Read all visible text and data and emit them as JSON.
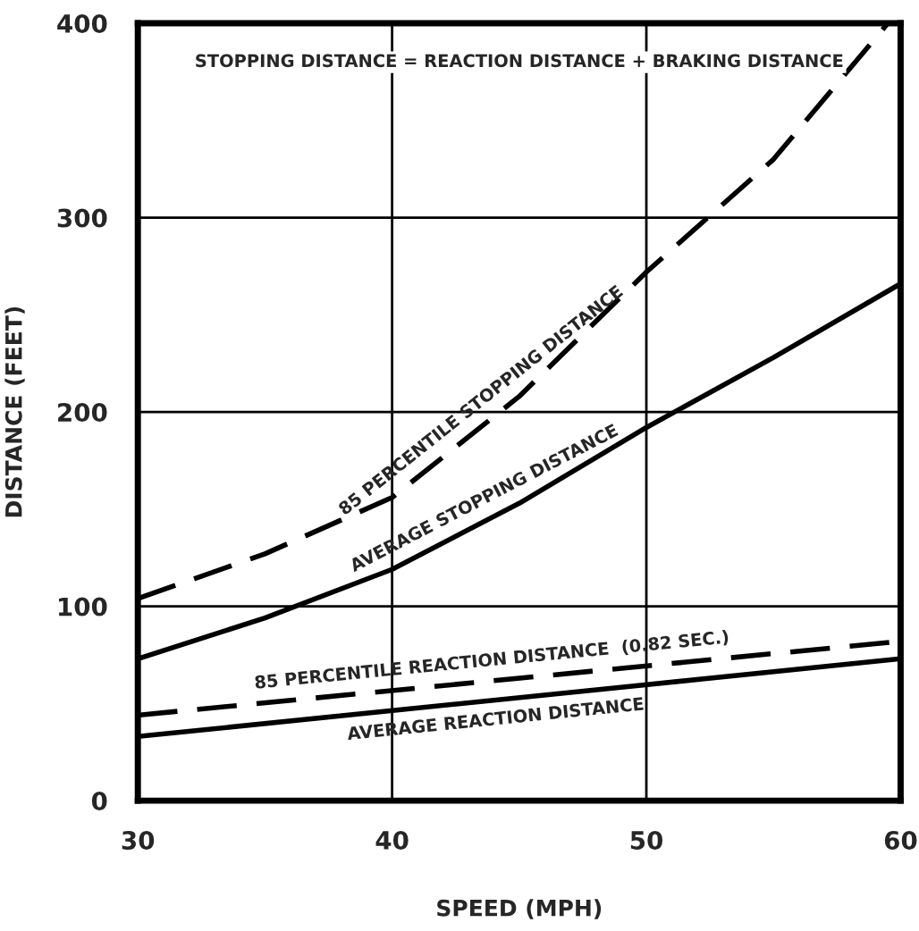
{
  "chart_data": {
    "type": "line",
    "xlabel": "SPEED (MPH)",
    "ylabel": "DISTANCE (FEET)",
    "annotations": [
      "STOPPING DISTANCE = REACTION DISTANCE + BRAKING DISTANCE"
    ],
    "xlim": [
      30,
      60
    ],
    "xticks": [
      30,
      40,
      50,
      60
    ],
    "ylim": [
      0,
      400
    ],
    "yticks": [
      0,
      100,
      200,
      300,
      400
    ],
    "grid": true,
    "legend": false,
    "series": [
      {
        "name": "85 PERCENTILE STOPPING DISTANCE",
        "color": "#000000",
        "line_style": "dashed",
        "x": [
          30,
          35,
          40,
          45,
          50,
          55,
          59.5
        ],
        "values": [
          104,
          127,
          156,
          208,
          272,
          330,
          400
        ]
      },
      {
        "name": "AVERAGE STOPPING DISTANCE",
        "color": "#000000",
        "line_style": "solid",
        "x": [
          30,
          35,
          40,
          45,
          50,
          55,
          60
        ],
        "values": [
          73,
          94,
          119,
          153,
          192,
          228,
          266
        ]
      },
      {
        "name": "85 PERCENTILE REACTION DISTANCE  (0.82 SEC.)",
        "color": "#000000",
        "line_style": "dashed",
        "x": [
          30,
          60
        ],
        "values": [
          44,
          82
        ]
      },
      {
        "name": "AVERAGE REACTION DISTANCE",
        "color": "#000000",
        "line_style": "solid",
        "x": [
          30,
          60
        ],
        "values": [
          33,
          73
        ]
      }
    ]
  }
}
